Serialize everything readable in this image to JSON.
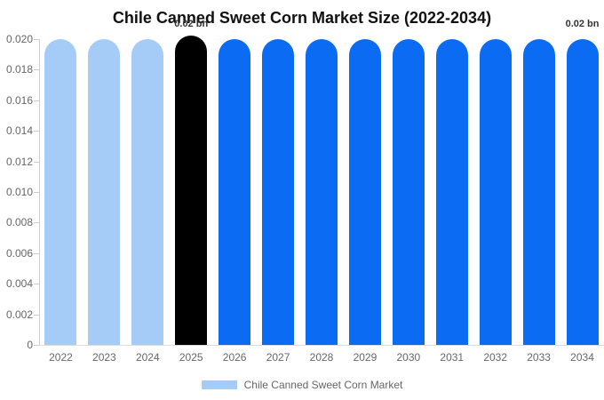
{
  "chart_data": {
    "type": "bar",
    "title": "Chile Canned Sweet Corn Market Size (2022-2034)",
    "categories": [
      "2022",
      "2023",
      "2024",
      "2025",
      "2026",
      "2027",
      "2028",
      "2029",
      "2030",
      "2031",
      "2032",
      "2033",
      "2034"
    ],
    "values": [
      0.02,
      0.02,
      0.02,
      0.02,
      0.02,
      0.02,
      0.02,
      0.02,
      0.02,
      0.02,
      0.02,
      0.02,
      0.02
    ],
    "unit": "bn",
    "bar_colors": [
      "#A5CCF7",
      "#A5CCF7",
      "#A5CCF7",
      "#000000",
      "#0B6CF3",
      "#0B6CF3",
      "#0B6CF3",
      "#0B6CF3",
      "#0B6CF3",
      "#0B6CF3",
      "#0B6CF3",
      "#0B6CF3",
      "#0B6CF3"
    ],
    "highlight_category": "2025",
    "ylim": [
      0,
      0.02
    ],
    "ytick_labels": [
      "0",
      "0.002",
      "0.004",
      "0.006",
      "0.008",
      "0.010",
      "0.012",
      "0.014",
      "0.016",
      "0.018",
      "0.020"
    ],
    "grid": false,
    "legend_position": "bottom",
    "annotations": [
      {
        "text": "0.02 bn",
        "category": "2025"
      },
      {
        "text": "0.02 bn",
        "category": "2034"
      }
    ],
    "legend": {
      "label": "Chile Canned Sweet Corn Market",
      "swatch_color": "#A5CCF7"
    },
    "colors": {
      "axis_line": "#cccccc",
      "baseline": "#dddddd",
      "tick_label": "#666666",
      "title": "#111111",
      "annotation": "#333333"
    }
  }
}
